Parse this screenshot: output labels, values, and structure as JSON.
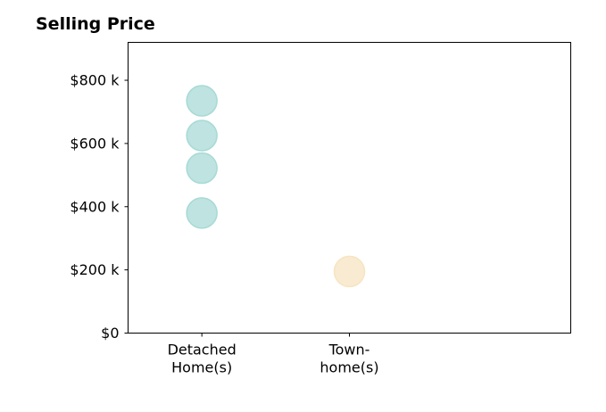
{
  "chart_data": {
    "type": "scatter",
    "title": "Selling Price",
    "xlabel": "",
    "ylabel": "",
    "categories": [
      {
        "id": "detached",
        "lines": [
          "Detached",
          "Home(s)"
        ]
      },
      {
        "id": "townhome",
        "lines": [
          "Town-",
          "home(s)"
        ]
      }
    ],
    "x_range": [
      -0.5,
      2.5
    ],
    "ylim": [
      0,
      920000
    ],
    "yticks": [
      {
        "value": 0,
        "label": "$0"
      },
      {
        "value": 200000,
        "label": "$200 k"
      },
      {
        "value": 400000,
        "label": "$400 k"
      },
      {
        "value": 600000,
        "label": "$600 k"
      },
      {
        "value": 800000,
        "label": "$800 k"
      }
    ],
    "series": [
      {
        "category": "detached",
        "color": "#a8dad5",
        "values": [
          380000,
          522000,
          625000,
          735000
        ]
      },
      {
        "category": "townhome",
        "color": "#f7e4c1",
        "values": [
          195000
        ]
      }
    ],
    "grid": false,
    "legend": "none"
  }
}
